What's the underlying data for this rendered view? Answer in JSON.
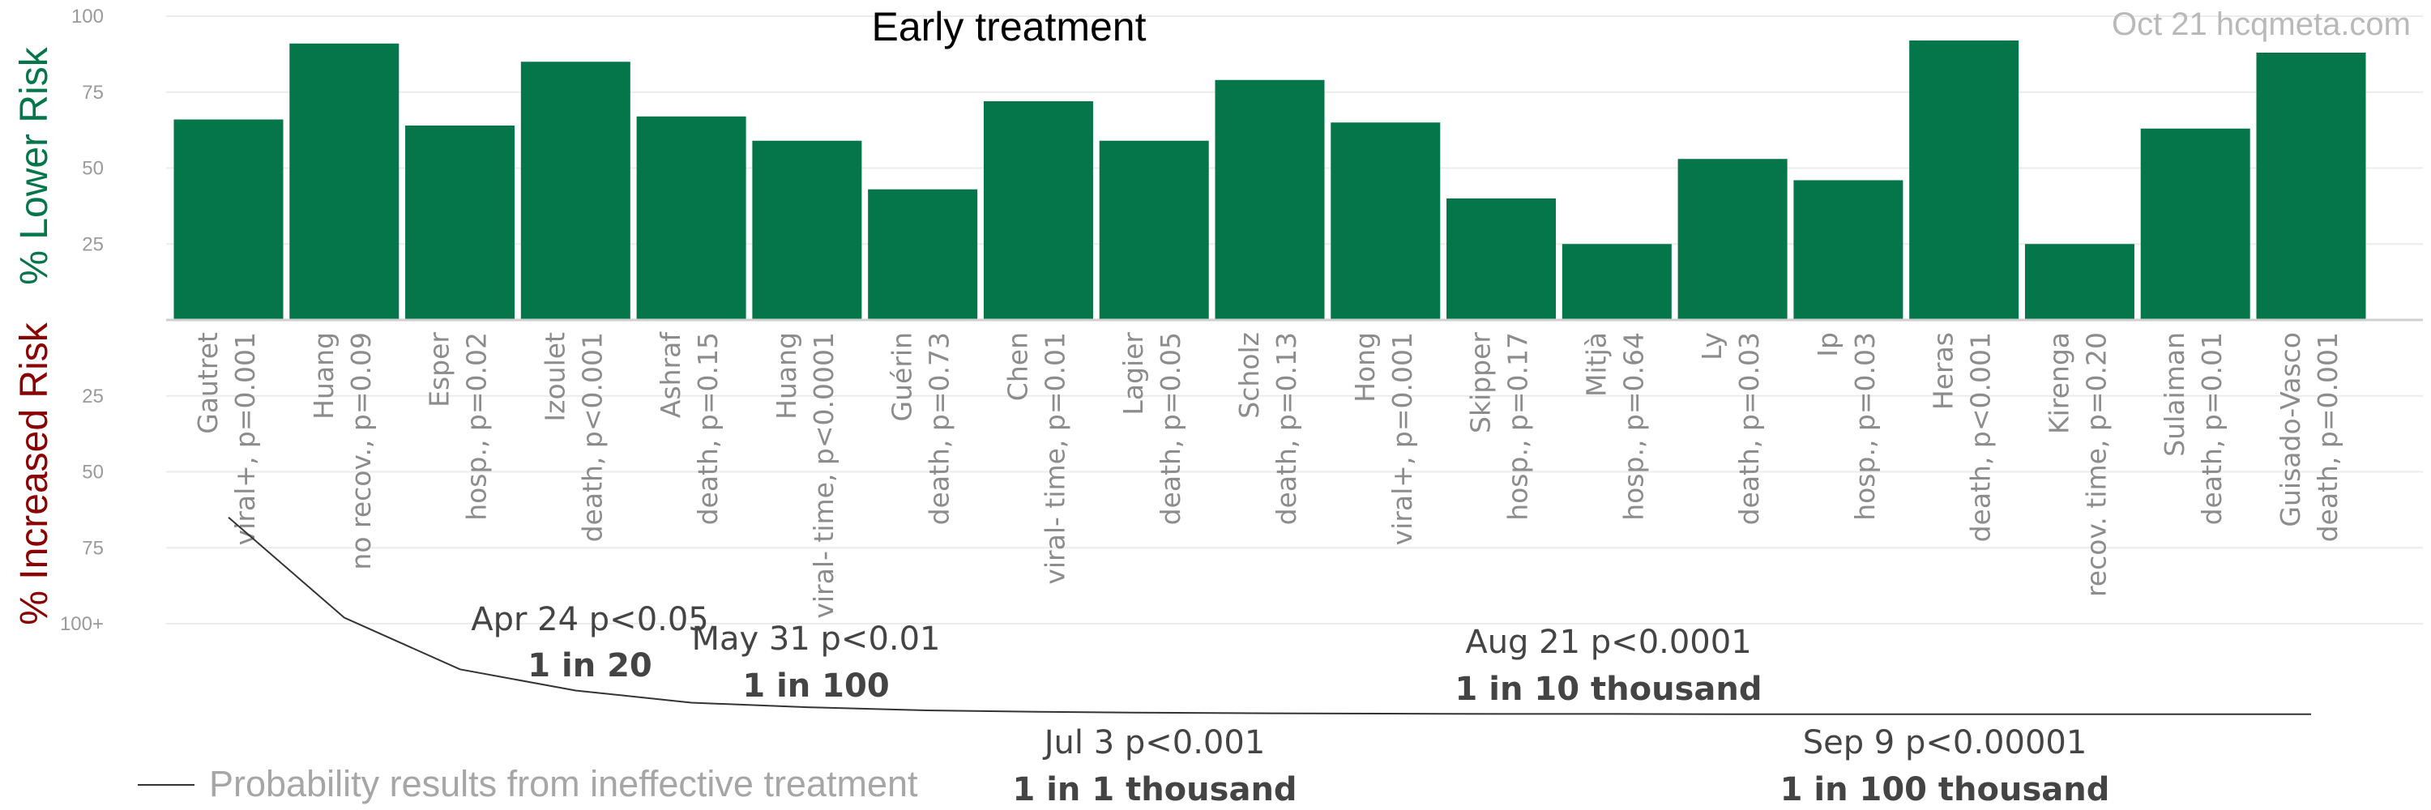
{
  "chart_data": {
    "type": "bar",
    "title": "Early treatment",
    "watermark": "Oct 21 hcqmeta.com",
    "ylabel_positive": "% Lower Risk",
    "ylabel_negative": "% Increased Risk",
    "y_ticks_positive": [
      "100",
      "75",
      "50",
      "25"
    ],
    "y_ticks_negative": [
      "25",
      "50",
      "75",
      "100+"
    ],
    "ylim": [
      -100,
      100
    ],
    "grid": true,
    "bar_color": "#05754a",
    "ylabel_positive_color": "#05754a",
    "ylabel_negative_color": "#8b0000",
    "categories": [
      {
        "author": "Gautret",
        "outcome": "viral+, p=0.001"
      },
      {
        "author": "Huang",
        "outcome": "no recov., p=0.09"
      },
      {
        "author": "Esper",
        "outcome": "hosp., p=0.02"
      },
      {
        "author": "Izoulet",
        "outcome": "death, p<0.001"
      },
      {
        "author": "Ashraf",
        "outcome": "death, p=0.15"
      },
      {
        "author": "Huang",
        "outcome": "viral- time, p<0.0001"
      },
      {
        "author": "Guérin",
        "outcome": "death, p=0.73"
      },
      {
        "author": "Chen",
        "outcome": "viral- time, p=0.01"
      },
      {
        "author": "Lagier",
        "outcome": "death, p=0.05"
      },
      {
        "author": "Scholz",
        "outcome": "death, p=0.13"
      },
      {
        "author": "Hong",
        "outcome": "viral+, p=0.001"
      },
      {
        "author": "Skipper",
        "outcome": "hosp., p=0.17"
      },
      {
        "author": "Mitjà",
        "outcome": "hosp., p=0.64"
      },
      {
        "author": "Ly",
        "outcome": "death, p=0.03"
      },
      {
        "author": "Ip",
        "outcome": "hosp., p=0.03"
      },
      {
        "author": "Heras",
        "outcome": "death, p<0.001"
      },
      {
        "author": "Kirenga",
        "outcome": "recov. time, p=0.20"
      },
      {
        "author": "Sulaiman",
        "outcome": "death, p=0.01"
      },
      {
        "author": "Guisado-Vasco",
        "outcome": "death, p=0.001"
      }
    ],
    "values": [
      66,
      91,
      64,
      85,
      67,
      59,
      43,
      72,
      59,
      79,
      65,
      40,
      25,
      53,
      46,
      92,
      25,
      63,
      88
    ],
    "probability_curve": {
      "legend_label": "Probability results from ineffective treatment",
      "color": "#333333",
      "values": [
        -65,
        -98,
        -115,
        -122,
        -126,
        -127.5,
        -128.5,
        -129,
        -129.3,
        -129.5,
        -129.6,
        -129.7,
        -129.7,
        -129.8,
        -129.8,
        -129.8,
        -129.8,
        -129.8,
        -129.8
      ]
    },
    "annotations": [
      {
        "date": "Apr 24",
        "threshold": "p<0.05",
        "odds": "1 in 20"
      },
      {
        "date": "May 31",
        "threshold": "p<0.01",
        "odds": "1 in 100"
      },
      {
        "date": "Jul 3",
        "threshold": "p<0.001",
        "odds": "1 in 1 thousand"
      },
      {
        "date": "Aug 21",
        "threshold": "p<0.0001",
        "odds": "1 in 10 thousand"
      },
      {
        "date": "Sep 9",
        "threshold": "p<0.00001",
        "odds": "1 in 100 thousand"
      }
    ]
  }
}
